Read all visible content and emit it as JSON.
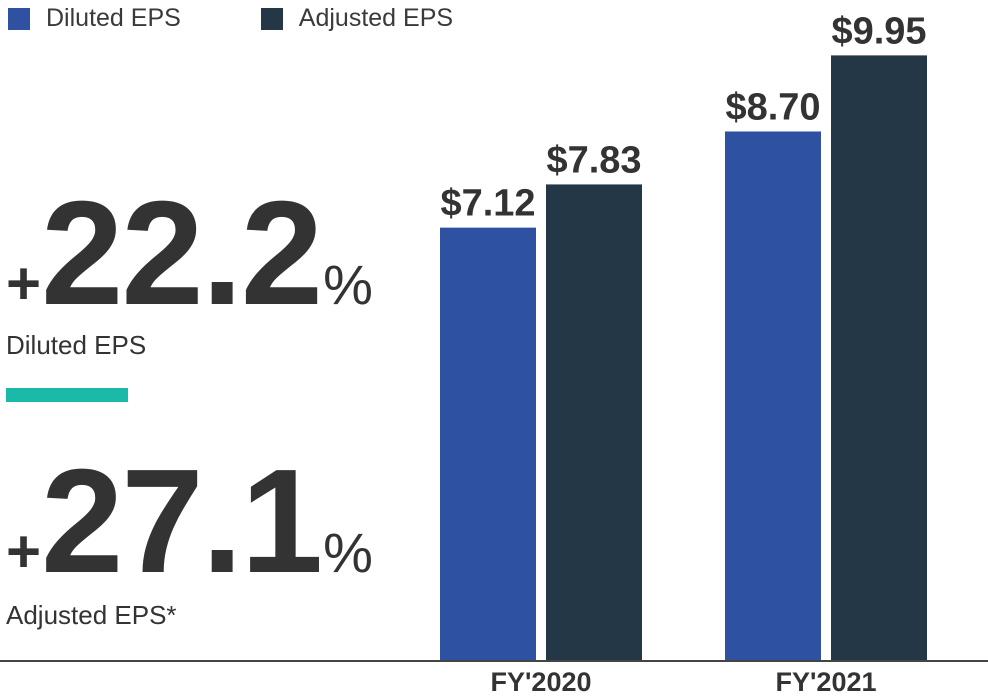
{
  "legend": {
    "diluted_label": "Diluted EPS",
    "adjusted_label": "Adjusted EPS"
  },
  "colors": {
    "diluted": "#2e51a2",
    "adjusted": "#243746",
    "accent": "#1bb9a8",
    "text": "#333333",
    "baseline": "#444444"
  },
  "stats": {
    "diluted": {
      "sign": "+",
      "value": "22.2",
      "unit": "%",
      "label": "Diluted EPS"
    },
    "adjusted": {
      "sign": "+",
      "value": "27.1",
      "unit": "%",
      "label": "Adjusted EPS*"
    }
  },
  "chart_data": {
    "type": "bar",
    "categories": [
      "FY'2020",
      "FY'2021"
    ],
    "series": [
      {
        "name": "Diluted EPS",
        "values": [
          7.12,
          8.7
        ],
        "labels": [
          "$7.12",
          "$8.70"
        ]
      },
      {
        "name": "Adjusted EPS",
        "values": [
          7.83,
          9.95
        ],
        "labels": [
          "$7.83",
          "$9.95"
        ]
      }
    ],
    "title": "",
    "xlabel": "",
    "ylabel": "",
    "ylim": [
      0,
      10.4
    ],
    "grid": false,
    "legend_position": "top-left"
  }
}
